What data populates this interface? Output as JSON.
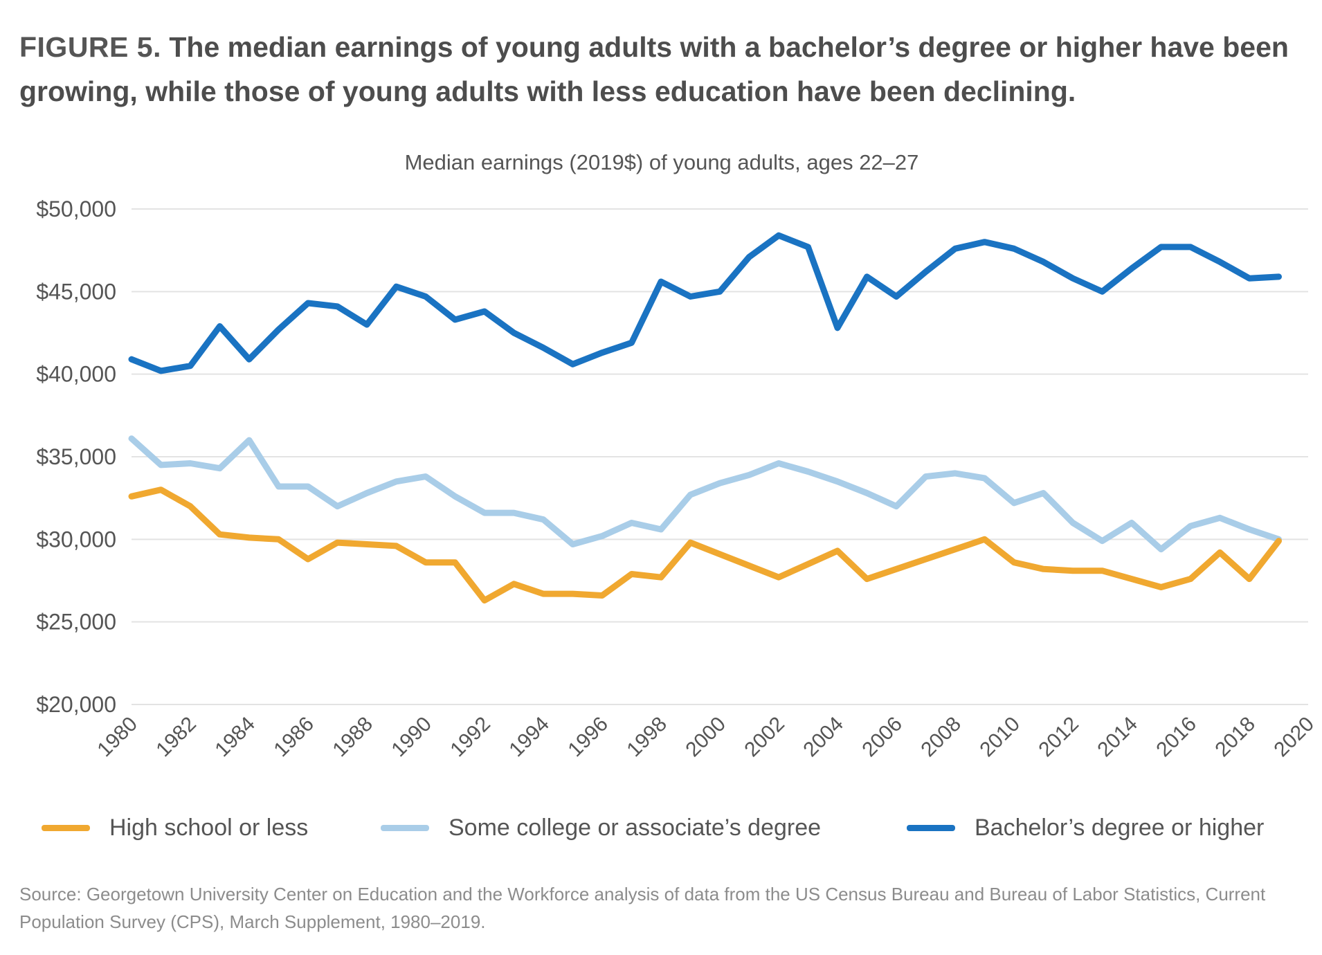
{
  "figure": {
    "label": "FIGURE 5.",
    "title": "The median earnings of young adults with a bachelor’s degree or higher have been growing, while those of young adults with less education have been declining.",
    "source": "Source: Georgetown University Center on Education and the Workforce analysis of data from the US Census Bureau and Bureau of Labor Statistics, Current Population Survey (CPS), March Supplement, 1980–2019."
  },
  "chart_data": {
    "type": "line",
    "title": "Median earnings (2019$) of young adults, ages 22–27",
    "xlabel": "",
    "ylabel": "",
    "xlim": [
      1980,
      2020
    ],
    "ylim": [
      20000,
      50000
    ],
    "grid": true,
    "legend_position": "bottom",
    "x_ticks": [
      1980,
      1982,
      1984,
      1986,
      1988,
      1990,
      1992,
      1994,
      1996,
      1998,
      2000,
      2002,
      2004,
      2006,
      2008,
      2010,
      2012,
      2014,
      2016,
      2018,
      2020
    ],
    "x_tick_labels": [
      "1980",
      "1982",
      "1984",
      "1986",
      "1988",
      "1990",
      "1992",
      "1994",
      "1996",
      "1998",
      "2000",
      "2002",
      "2004",
      "2006",
      "2008",
      "2010",
      "2012",
      "2014",
      "2016",
      "2018",
      "2020"
    ],
    "y_ticks": [
      20000,
      25000,
      30000,
      35000,
      40000,
      45000,
      50000
    ],
    "y_tick_labels": [
      "$20,000",
      "$25,000",
      "$30,000",
      "$35,000",
      "$40,000",
      "$45,000",
      "$50,000"
    ],
    "x": [
      1980,
      1981,
      1982,
      1983,
      1984,
      1985,
      1986,
      1987,
      1988,
      1989,
      1990,
      1991,
      1992,
      1993,
      1994,
      1995,
      1996,
      1997,
      1998,
      1999,
      2000,
      2001,
      2002,
      2003,
      2004,
      2005,
      2006,
      2007,
      2008,
      2009,
      2010,
      2011,
      2012,
      2013,
      2014,
      2015,
      2016,
      2017,
      2018,
      2019
    ],
    "series": [
      {
        "name": "High school or less",
        "color": "#f0a830",
        "values": [
          32600,
          33000,
          32000,
          30300,
          30100,
          30000,
          28800,
          29800,
          29700,
          29600,
          28600,
          28600,
          26300,
          27300,
          26700,
          26700,
          26600,
          27900,
          27700,
          29800,
          29100,
          28400,
          27700,
          28500,
          29300,
          27600,
          28200,
          28800,
          29400,
          30000,
          28600,
          28200,
          28100,
          28100,
          27600,
          27100,
          27600,
          29200,
          27600,
          29900
        ]
      },
      {
        "name": "Some college or associate’s degree",
        "color": "#a9cde8",
        "values": [
          36100,
          34500,
          34600,
          34300,
          36000,
          33200,
          33200,
          32000,
          32800,
          33500,
          33800,
          32600,
          31600,
          31600,
          31200,
          29700,
          30200,
          31000,
          30600,
          32700,
          33400,
          33900,
          34600,
          34100,
          33500,
          32800,
          32000,
          33800,
          34000,
          33700,
          32200,
          32800,
          31000,
          29900,
          31000,
          29400,
          30800,
          31300,
          30600,
          30000
        ]
      },
      {
        "name": "Bachelor’s degree or higher",
        "color": "#1a73c2",
        "values": [
          40900,
          40200,
          40500,
          42900,
          40900,
          42700,
          44300,
          44100,
          43000,
          45300,
          44700,
          43300,
          43800,
          42500,
          41600,
          40600,
          41300,
          41900,
          45600,
          44700,
          45000,
          47100,
          48400,
          47700,
          42800,
          45900,
          44700,
          46200,
          47600,
          48000,
          47600,
          46800,
          45800,
          45000,
          46400,
          47700,
          47700,
          46800,
          45800,
          45900
        ]
      }
    ]
  }
}
